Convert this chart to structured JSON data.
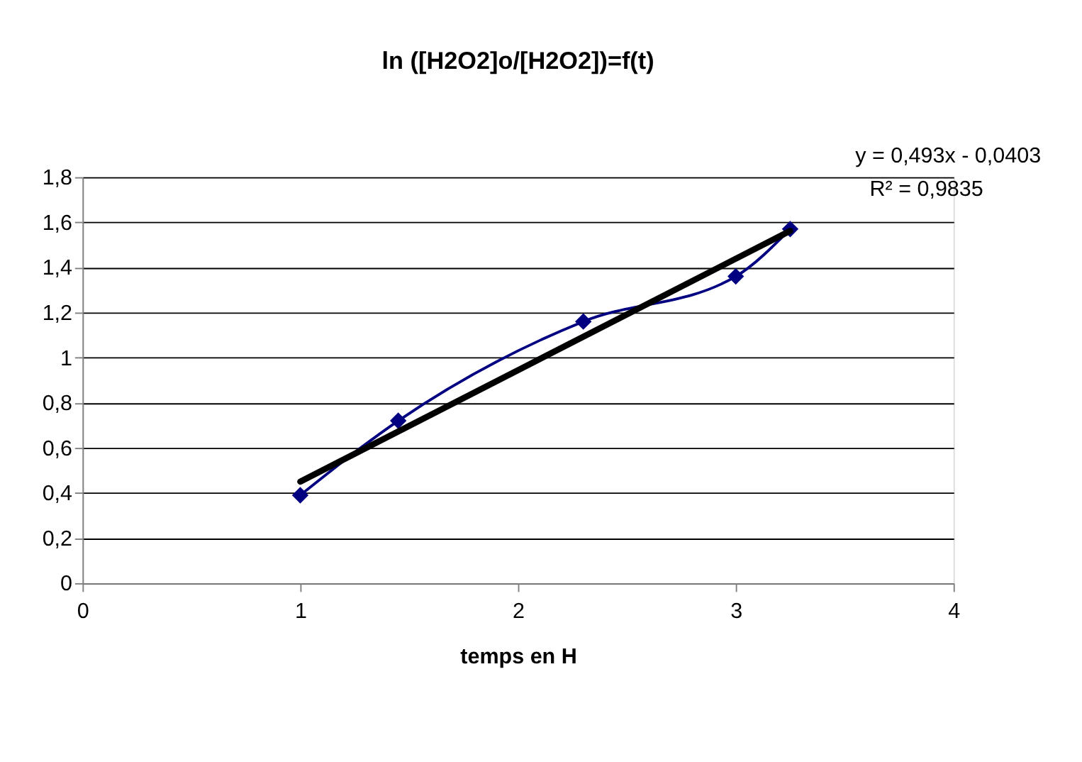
{
  "chart_data": {
    "type": "line",
    "title": "ln ([H2O2]o/[H2O2])=f(t)",
    "xlabel": "temps en H",
    "series": [
      {
        "color": "#000080",
        "marker": "diamond",
        "x": [
          1,
          1.45,
          2.3,
          3,
          3.25
        ],
        "values": [
          0.39,
          0.72,
          1.16,
          1.36,
          1.57
        ]
      },
      {
        "color": "#000000",
        "marker": "none",
        "x": [
          1,
          3.25
        ],
        "values": [
          0.45,
          1.562
        ]
      }
    ],
    "annotations": [
      "y = 0,493x - 0,0403",
      "R² = 0,9835"
    ],
    "xlim": [
      0,
      4
    ],
    "xticks": [
      0,
      1,
      2,
      3,
      4
    ],
    "ylim": [
      0,
      1.8
    ],
    "yticks": [
      0,
      {
        "value": 0.2,
        "label": "0,2"
      },
      {
        "value": 0.4,
        "label": "0,4"
      },
      {
        "value": 0.6,
        "label": "0,6"
      },
      {
        "value": 0.8,
        "label": "0,8"
      },
      1,
      {
        "value": 1.2,
        "label": "1,2"
      },
      {
        "value": 1.4,
        "label": "1,4"
      },
      {
        "value": 1.6,
        "label": "1,6"
      },
      {
        "value": 1.8,
        "label": "1,8"
      }
    ],
    "grid": "y",
    "legend": false
  }
}
